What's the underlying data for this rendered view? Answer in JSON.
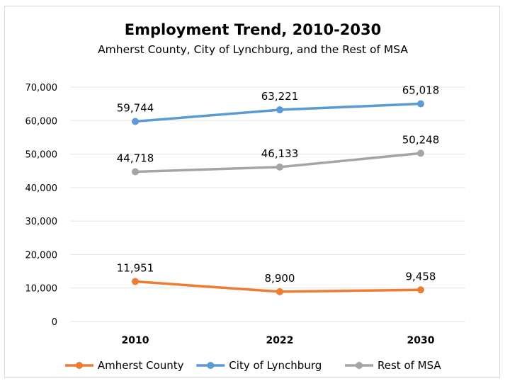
{
  "chart_data": {
    "type": "line",
    "title": "Employment Trend, 2010-2030",
    "subtitle": "Amherst County, City of Lynchburg, and the Rest of MSA",
    "categories": [
      "2010",
      "2022",
      "2030"
    ],
    "ylim": [
      0,
      70000
    ],
    "yticks": [
      "0",
      "10,000",
      "20,000",
      "30,000",
      "40,000",
      "50,000",
      "60,000",
      "70,000"
    ],
    "grid": true,
    "legend_position": "bottom",
    "series": [
      {
        "name": "Amherst County",
        "color": "#ed7d31",
        "values": [
          11951,
          8900,
          9458
        ],
        "labels": [
          "11,951",
          "8,900",
          "9,458"
        ]
      },
      {
        "name": "City of Lynchburg",
        "color": "#5b9bd5",
        "values": [
          59744,
          63221,
          65018
        ],
        "labels": [
          "59,744",
          "63,221",
          "65,018"
        ]
      },
      {
        "name": "Rest of MSA",
        "color": "#a5a5a5",
        "values": [
          44718,
          46133,
          50248
        ],
        "labels": [
          "44,718",
          "46,133",
          "50,248"
        ]
      }
    ]
  }
}
